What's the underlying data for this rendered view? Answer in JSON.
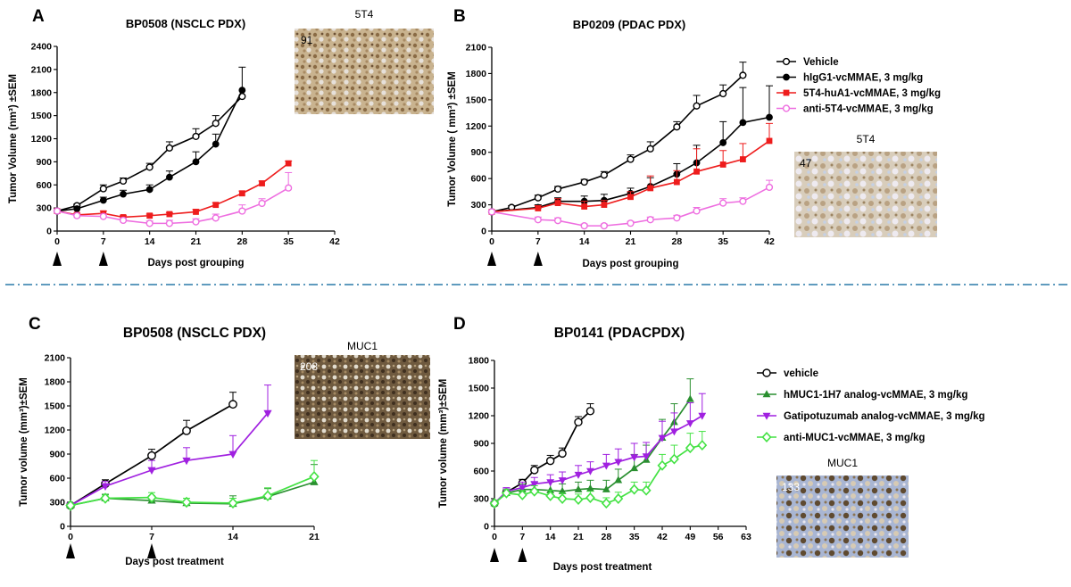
{
  "chart_data": [
    {
      "type": "line",
      "panel": "A",
      "title": "BP0508 (NSCLC PDX)",
      "xlabel": "Days post grouping",
      "ylabel": "Tumor Volume (nm³) ±SEM",
      "xlim": [
        0,
        42
      ],
      "ylim": [
        0,
        2400
      ],
      "xticks": [
        "0",
        "7",
        "14",
        "21",
        "28",
        "35",
        "42"
      ],
      "yticks": [
        "0",
        "300",
        "600",
        "900",
        "1200",
        "1500",
        "1800",
        "2100",
        "2400"
      ],
      "dosing_days": [
        0,
        7
      ],
      "inset": {
        "label": "5T4",
        "score": "91"
      },
      "series": [
        {
          "name": "Vehicle",
          "color": "#000000",
          "marker": "open-circle",
          "x": [
            0,
            3,
            7,
            10,
            14,
            17,
            21,
            24,
            28
          ],
          "y": [
            260,
            330,
            550,
            650,
            830,
            1080,
            1230,
            1400,
            1750
          ],
          "err": [
            0,
            20,
            50,
            40,
            50,
            80,
            100,
            100,
            0
          ]
        },
        {
          "name": "hIgG1-vcMMAE, 3 mg/kg",
          "color": "#000000",
          "marker": "filled-circle",
          "x": [
            0,
            3,
            7,
            10,
            14,
            17,
            21,
            24,
            28
          ],
          "y": [
            260,
            290,
            400,
            480,
            540,
            700,
            900,
            1130,
            1830
          ],
          "err": [
            0,
            20,
            40,
            50,
            60,
            80,
            130,
            130,
            300
          ]
        },
        {
          "name": "5T4-huA1-vcMMAE, 3 mg/kg",
          "color": "#ee1c1c",
          "marker": "filled-square",
          "x": [
            0,
            3,
            7,
            10,
            14,
            17,
            21,
            24,
            28,
            31,
            35
          ],
          "y": [
            260,
            210,
            230,
            180,
            200,
            220,
            250,
            340,
            490,
            620,
            880
          ],
          "err": [
            0,
            20,
            30,
            20,
            20,
            20,
            30,
            30,
            30,
            30,
            30
          ]
        },
        {
          "name": "anti-5T4-vcMMAE, 3 mg/kg",
          "color": "#ee6ee0",
          "marker": "open-circle",
          "x": [
            0,
            3,
            7,
            10,
            14,
            17,
            21,
            24,
            28,
            31,
            35
          ],
          "y": [
            260,
            200,
            190,
            140,
            100,
            100,
            120,
            170,
            260,
            360,
            560
          ],
          "err": [
            0,
            20,
            30,
            30,
            30,
            40,
            40,
            50,
            80,
            60,
            200
          ]
        }
      ]
    },
    {
      "type": "line",
      "panel": "B",
      "title": "BP0209 (PDAC PDX)",
      "xlabel": "Days post grouping",
      "ylabel": "Tumor Volume ( mm³) ±SEM",
      "xlim": [
        0,
        42
      ],
      "ylim": [
        0,
        2100
      ],
      "xticks": [
        "0",
        "7",
        "14",
        "21",
        "28",
        "35",
        "42"
      ],
      "yticks": [
        "0",
        "300",
        "600",
        "900",
        "1200",
        "1500",
        "1800",
        "2100"
      ],
      "dosing_days": [
        0,
        7
      ],
      "inset": {
        "label": "5T4",
        "score": "47"
      },
      "series": [
        {
          "name": "Vehicle",
          "color": "#000000",
          "marker": "open-circle",
          "x": [
            0,
            3,
            7,
            10,
            14,
            17,
            21,
            24,
            28,
            31,
            35,
            38
          ],
          "y": [
            220,
            270,
            380,
            480,
            560,
            640,
            820,
            940,
            1190,
            1430,
            1570,
            1780
          ],
          "err": [
            0,
            20,
            30,
            30,
            30,
            40,
            50,
            80,
            60,
            120,
            100,
            150
          ]
        },
        {
          "name": "hIgG1-vcMMAE, 3 mg/kg",
          "color": "#000000",
          "marker": "filled-circle",
          "x": [
            0,
            7,
            10,
            14,
            17,
            21,
            24,
            28,
            31,
            35,
            38,
            42
          ],
          "y": [
            220,
            270,
            340,
            340,
            350,
            430,
            510,
            650,
            780,
            1010,
            1240,
            1300
          ],
          "err": [
            0,
            30,
            40,
            60,
            70,
            60,
            100,
            120,
            200,
            240,
            400,
            360
          ]
        },
        {
          "name": "5T4-huA1-vcMMAE, 3 mg/kg",
          "color": "#ee1c1c",
          "marker": "filled-square",
          "x": [
            0,
            7,
            10,
            14,
            17,
            21,
            24,
            28,
            31,
            35,
            38,
            42
          ],
          "y": [
            220,
            260,
            320,
            280,
            300,
            390,
            490,
            560,
            680,
            760,
            820,
            1030
          ],
          "err": [
            0,
            30,
            50,
            60,
            50,
            60,
            140,
            130,
            260,
            160,
            180,
            200
          ]
        },
        {
          "name": "anti-5T4-vcMMAE, 3 mg/kg",
          "color": "#ee6ee0",
          "marker": "open-circle",
          "x": [
            0,
            7,
            10,
            14,
            17,
            21,
            24,
            28,
            31,
            35,
            38,
            42
          ],
          "y": [
            220,
            130,
            120,
            60,
            60,
            90,
            130,
            150,
            230,
            320,
            340,
            500
          ],
          "err": [
            0,
            30,
            30,
            20,
            20,
            20,
            30,
            30,
            40,
            50,
            40,
            80
          ]
        }
      ]
    },
    {
      "type": "line",
      "panel": "C",
      "title": "BP0508 (NSCLC PDX)",
      "xlabel": "Days post treatment",
      "ylabel": "Tumor volume (mm³)±SEM",
      "xlim": [
        0,
        21
      ],
      "ylim": [
        0,
        2100
      ],
      "xticks": [
        "0",
        "7",
        "14",
        "21"
      ],
      "yticks": [
        "0",
        "300",
        "600",
        "900",
        "1200",
        "1500",
        "1800",
        "2100"
      ],
      "dosing_days": [
        0,
        7
      ],
      "inset": {
        "label": "MUC1",
        "score": "208"
      },
      "series": [
        {
          "name": "vehicle",
          "color": "#000000",
          "marker": "open-circle",
          "x": [
            0,
            3,
            7,
            10,
            14
          ],
          "y": [
            260,
            530,
            880,
            1190,
            1520
          ],
          "err": [
            0,
            50,
            80,
            130,
            150
          ]
        },
        {
          "name": "hMUC1-1H7 analog-vcMMAE, 3 mg/kg",
          "color": "#2a8f30",
          "marker": "filled-triangle",
          "x": [
            0,
            3,
            7,
            10,
            14,
            17,
            21
          ],
          "y": [
            260,
            350,
            320,
            290,
            280,
            370,
            550
          ],
          "err": [
            0,
            50,
            60,
            60,
            100,
            100,
            220
          ]
        },
        {
          "name": "Gatipotuzumab analog-vcMMAE, 3 mg/kg",
          "color": "#a020e0",
          "marker": "filled-triangle-down",
          "x": [
            0,
            3,
            7,
            10,
            14,
            17
          ],
          "y": [
            260,
            500,
            700,
            820,
            900,
            1410
          ],
          "err": [
            0,
            60,
            120,
            160,
            230,
            350
          ]
        },
        {
          "name": "anti-MUC1-vcMMAE, 3 mg/kg",
          "color": "#44e244",
          "marker": "open-diamond",
          "x": [
            0,
            3,
            7,
            10,
            14,
            17,
            21
          ],
          "y": [
            260,
            350,
            360,
            300,
            290,
            380,
            620
          ],
          "err": [
            0,
            40,
            60,
            50,
            60,
            100,
            200
          ]
        }
      ]
    },
    {
      "type": "line",
      "panel": "D",
      "title": "BP0141 (PDACPDX)",
      "xlabel": "Days post treatment",
      "ylabel": "Tumor volume (mm³)±SEM",
      "xlim": [
        0,
        63
      ],
      "ylim": [
        0,
        1800
      ],
      "xticks": [
        "0",
        "7",
        "14",
        "21",
        "28",
        "35",
        "42",
        "49",
        "56",
        "63"
      ],
      "yticks": [
        "0",
        "300",
        "600",
        "900",
        "1200",
        "1500",
        "1800"
      ],
      "dosing_days": [
        0,
        7
      ],
      "inset": {
        "label": "MUC1",
        "score": "133"
      },
      "series": [
        {
          "name": "vehicle",
          "color": "#000000",
          "marker": "open-circle",
          "x": [
            0,
            3,
            7,
            10,
            14,
            17,
            21,
            24
          ],
          "y": [
            250,
            370,
            470,
            610,
            710,
            790,
            1130,
            1250
          ],
          "err": [
            0,
            30,
            40,
            50,
            60,
            60,
            60,
            80
          ]
        },
        {
          "name": "hMUC1-1H7 analog-vcMMAE, 3 mg/kg",
          "color": "#2a8f30",
          "marker": "filled-triangle",
          "x": [
            0,
            3,
            7,
            10,
            14,
            17,
            21,
            24,
            28,
            31,
            35,
            38,
            42,
            45,
            49
          ],
          "y": [
            250,
            360,
            400,
            400,
            390,
            380,
            400,
            410,
            400,
            500,
            630,
            720,
            960,
            1130,
            1380
          ],
          "err": [
            0,
            40,
            60,
            80,
            90,
            80,
            80,
            90,
            100,
            120,
            150,
            160,
            200,
            200,
            220
          ]
        },
        {
          "name": "Gatipotuzumab analog-vcMMAE, 3 mg/kg",
          "color": "#a020e0",
          "marker": "filled-triangle-down",
          "x": [
            0,
            3,
            7,
            10,
            14,
            17,
            21,
            24,
            28,
            31,
            35,
            38,
            42,
            45,
            49,
            52
          ],
          "y": [
            250,
            380,
            420,
            460,
            480,
            500,
            560,
            600,
            660,
            700,
            750,
            760,
            960,
            1030,
            1120,
            1200
          ],
          "err": [
            0,
            40,
            60,
            70,
            80,
            90,
            100,
            100,
            120,
            140,
            150,
            150,
            180,
            200,
            220,
            240
          ]
        },
        {
          "name": "anti-MUC1-vcMMAE, 3 mg/kg",
          "color": "#44e244",
          "marker": "open-diamond",
          "x": [
            0,
            3,
            7,
            10,
            14,
            17,
            21,
            24,
            28,
            31,
            35,
            38,
            42,
            45,
            49,
            52
          ],
          "y": [
            250,
            360,
            340,
            380,
            330,
            300,
            290,
            310,
            250,
            300,
            400,
            390,
            660,
            730,
            850,
            880
          ],
          "err": [
            0,
            40,
            50,
            60,
            60,
            60,
            60,
            70,
            60,
            70,
            80,
            90,
            120,
            150,
            160,
            150
          ]
        }
      ]
    }
  ],
  "legend_top": [
    "Vehicle",
    "hIgG1-vcMMAE, 3 mg/kg",
    "5T4-huA1-vcMMAE, 3 mg/kg",
    "anti-5T4-vcMMAE, 3 mg/kg"
  ],
  "legend_bottom": [
    "vehicle",
    "hMUC1-1H7 analog-vcMMAE, 3 mg/kg",
    "Gatipotuzumab analog-vcMMAE, 3 mg/kg",
    "anti-MUC1-vcMMAE, 3 mg/kg"
  ]
}
